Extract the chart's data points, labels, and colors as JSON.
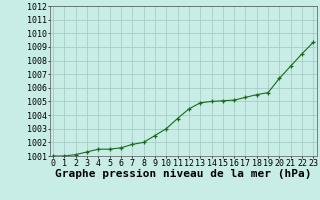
{
  "hours": [
    0,
    1,
    2,
    3,
    4,
    5,
    6,
    7,
    8,
    9,
    10,
    11,
    12,
    13,
    14,
    15,
    16,
    17,
    18,
    19,
    20,
    21,
    22,
    23
  ],
  "pressure": [
    1001.0,
    1001.0,
    1001.1,
    1001.3,
    1001.5,
    1001.5,
    1001.6,
    1001.85,
    1002.0,
    1002.5,
    1003.0,
    1003.75,
    1004.45,
    1004.9,
    1005.0,
    1005.0,
    1005.05,
    1005.3,
    1005.5,
    1005.6,
    1006.75,
    1007.5,
    1008.5,
    1009.3
  ],
  "final_pressure": [
    1001.0,
    1001.0,
    1001.1,
    1001.3,
    1001.5,
    1001.5,
    1001.6,
    1001.85,
    1002.0,
    1002.5,
    1003.0,
    1003.75,
    1004.45,
    1004.9,
    1005.0,
    1005.05,
    1005.1,
    1005.3,
    1005.5,
    1005.65,
    1006.7,
    1007.6,
    1008.5,
    1009.35
  ],
  "ylim": [
    1001,
    1012
  ],
  "xlim": [
    -0.3,
    23.3
  ],
  "yticks": [
    1001,
    1002,
    1003,
    1004,
    1005,
    1006,
    1007,
    1008,
    1009,
    1010,
    1011,
    1012
  ],
  "xtick_labels": [
    "0",
    "1",
    "2",
    "3",
    "4",
    "5",
    "6",
    "7",
    "8",
    "9",
    "10",
    "11",
    "12",
    "13",
    "14",
    "15",
    "16",
    "17",
    "18",
    "19",
    "20",
    "21",
    "22",
    "23"
  ],
  "line_color": "#1a6b1a",
  "marker_color": "#1a6b1a",
  "bg_color": "#c8ece6",
  "grid_color": "#a0c8c0",
  "xlabel": "Graphe pression niveau de la mer (hPa)",
  "xlabel_fontsize": 8,
  "tick_fontsize": 6,
  "fig_width": 3.2,
  "fig_height": 2.0,
  "dpi": 100
}
